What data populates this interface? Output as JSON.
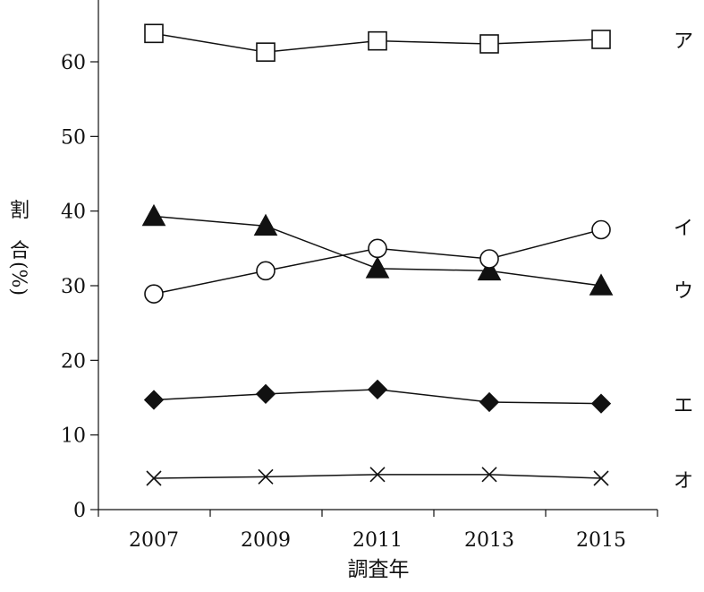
{
  "chart_data": {
    "type": "line",
    "title": "",
    "xlabel": "調査年",
    "ylabel": "割合(%)",
    "ylabel_chars": [
      "割",
      "合",
      "(%)"
    ],
    "x": [
      2007,
      2009,
      2011,
      2013,
      2015
    ],
    "x_tick_labels": [
      "2007",
      "2009",
      "2011",
      "2013",
      "2015"
    ],
    "y_ticks": [
      0,
      10,
      20,
      30,
      40,
      50,
      60
    ],
    "y_tick_labels": [
      "0",
      "10",
      "20",
      "30",
      "40",
      "50",
      "60"
    ],
    "ylim": [
      0,
      70
    ],
    "grid": false,
    "legend": "labels at right end of each line",
    "colors": {
      "line": "#111111",
      "marker_fill_open": "#ffffff",
      "marker_fill_solid": "#111111"
    },
    "series": [
      {
        "name": "ア",
        "marker": "open-square",
        "values": [
          63.8,
          61.3,
          62.8,
          62.4,
          63.0
        ]
      },
      {
        "name": "イ",
        "marker": "filled-triangle",
        "values": [
          39.3,
          38.0,
          32.3,
          32.0,
          30.0
        ]
      },
      {
        "name": "ウ",
        "marker": "open-circle",
        "values": [
          28.9,
          32.0,
          35.0,
          33.6,
          37.5
        ]
      },
      {
        "name": "エ",
        "marker": "filled-diamond",
        "values": [
          14.7,
          15.5,
          16.1,
          14.4,
          14.2
        ]
      },
      {
        "name": "オ",
        "marker": "cross",
        "values": [
          4.2,
          4.4,
          4.7,
          4.7,
          4.2
        ]
      }
    ]
  }
}
